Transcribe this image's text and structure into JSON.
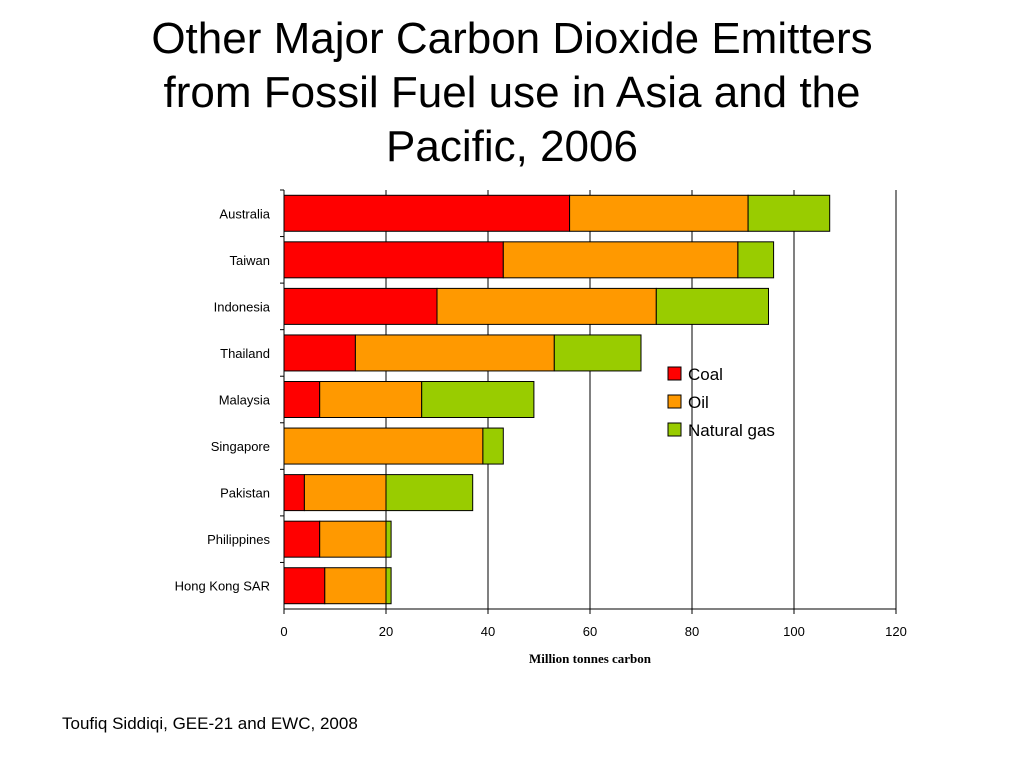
{
  "slide": {
    "title_lines": [
      "Other Major Carbon Dioxide Emitters",
      "from Fossil Fuel use in Asia and the",
      "Pacific, 2006"
    ],
    "source": "Toufiq Siddiqi, GEE-21 and EWC, 2008"
  },
  "colors": {
    "coal": "#ff0000",
    "oil": "#ff9900",
    "natural_gas": "#99cc00"
  },
  "chart_data": {
    "type": "bar",
    "orientation": "horizontal",
    "stacked": true,
    "categories": [
      "Australia",
      "Taiwan",
      "Indonesia",
      "Thailand",
      "Malaysia",
      "Singapore",
      "Pakistan",
      "Philippines",
      "Hong Kong SAR"
    ],
    "series": [
      {
        "name": "Coal",
        "color": "#ff0000",
        "values": [
          56,
          43,
          30,
          14,
          7,
          0,
          4,
          7,
          8
        ]
      },
      {
        "name": "Oil",
        "color": "#ff9900",
        "values": [
          35,
          46,
          43,
          39,
          20,
          39,
          16,
          13,
          12
        ]
      },
      {
        "name": "Natural gas",
        "color": "#99cc00",
        "values": [
          16,
          7,
          22,
          17,
          22,
          4,
          17,
          1,
          1
        ]
      }
    ],
    "xlabel": "Million tonnes carbon",
    "xlim": [
      0,
      120
    ],
    "xticks": [
      0,
      20,
      40,
      60,
      80,
      100,
      120
    ],
    "grid": "vertical",
    "legend_position": "right"
  }
}
